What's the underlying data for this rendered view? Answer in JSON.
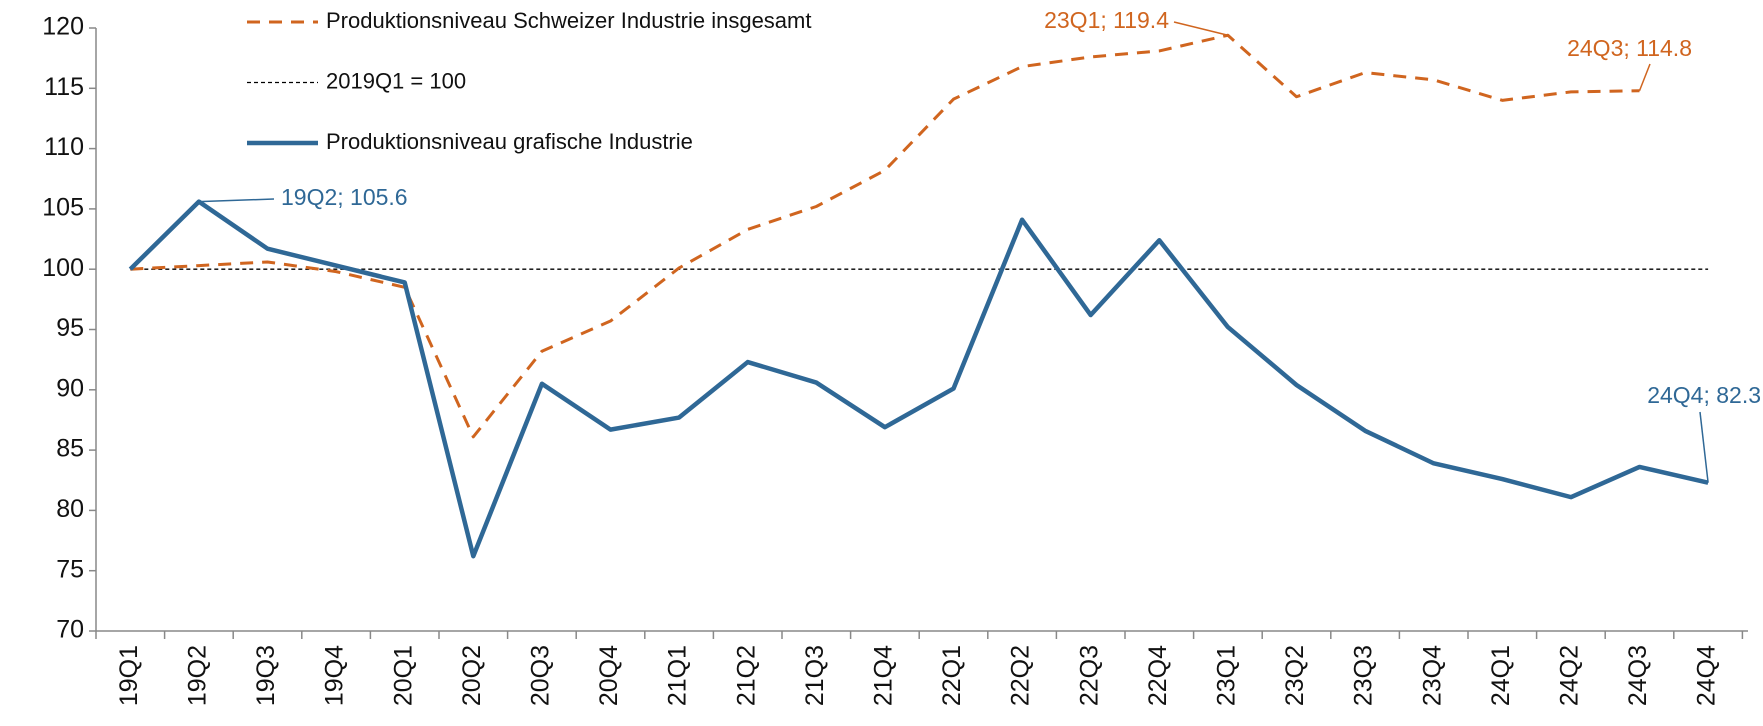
{
  "chart_data": {
    "type": "line",
    "categories": [
      "19Q1",
      "19Q2",
      "19Q3",
      "19Q4",
      "20Q1",
      "20Q2",
      "20Q3",
      "20Q4",
      "21Q1",
      "21Q2",
      "21Q3",
      "21Q4",
      "22Q1",
      "22Q2",
      "22Q3",
      "22Q4",
      "23Q1",
      "23Q2",
      "23Q3",
      "23Q4",
      "24Q1",
      "24Q2",
      "24Q3",
      "24Q4"
    ],
    "series": [
      {
        "name": "Produktionsniveau Schweizer Industrie insgesamt",
        "color": "#d0651f",
        "dash": "dashed",
        "values": [
          100,
          100.3,
          100.6,
          99.8,
          98.5,
          86.1,
          93.2,
          95.7,
          100.1,
          103.3,
          105.2,
          108.2,
          114.1,
          116.8,
          117.6,
          118.1,
          119.4,
          114.3,
          116.3,
          115.7,
          114.0,
          114.7,
          114.8,
          null
        ],
        "annotations": [
          {
            "category": "23Q1",
            "text": "23Q1; 119.4"
          },
          {
            "category": "24Q3",
            "text": "24Q3; 114.8"
          }
        ]
      },
      {
        "name": "2019Q1 = 100",
        "color": "#000000",
        "dash": "dotted",
        "values": [
          100,
          100,
          100,
          100,
          100,
          100,
          100,
          100,
          100,
          100,
          100,
          100,
          100,
          100,
          100,
          100,
          100,
          100,
          100,
          100,
          100,
          100,
          100,
          100
        ]
      },
      {
        "name": "Produktionsniveau grafische Industrie",
        "color": "#2f6896",
        "dash": "solid",
        "values": [
          100,
          105.6,
          101.7,
          100.3,
          98.9,
          76.2,
          90.5,
          86.7,
          87.7,
          92.3,
          90.6,
          86.9,
          90.1,
          104.1,
          96.2,
          102.4,
          95.2,
          90.4,
          86.6,
          83.9,
          82.6,
          81.1,
          83.6,
          82.3
        ],
        "annotations": [
          {
            "category": "19Q2",
            "text": "19Q2; 105.6"
          },
          {
            "category": "24Q4",
            "text": "24Q4; 82.3"
          }
        ]
      }
    ],
    "ylim": [
      70,
      120
    ],
    "yticks": [
      70,
      75,
      80,
      85,
      90,
      95,
      100,
      105,
      110,
      115,
      120
    ],
    "grid": false,
    "legend": "top-left"
  }
}
